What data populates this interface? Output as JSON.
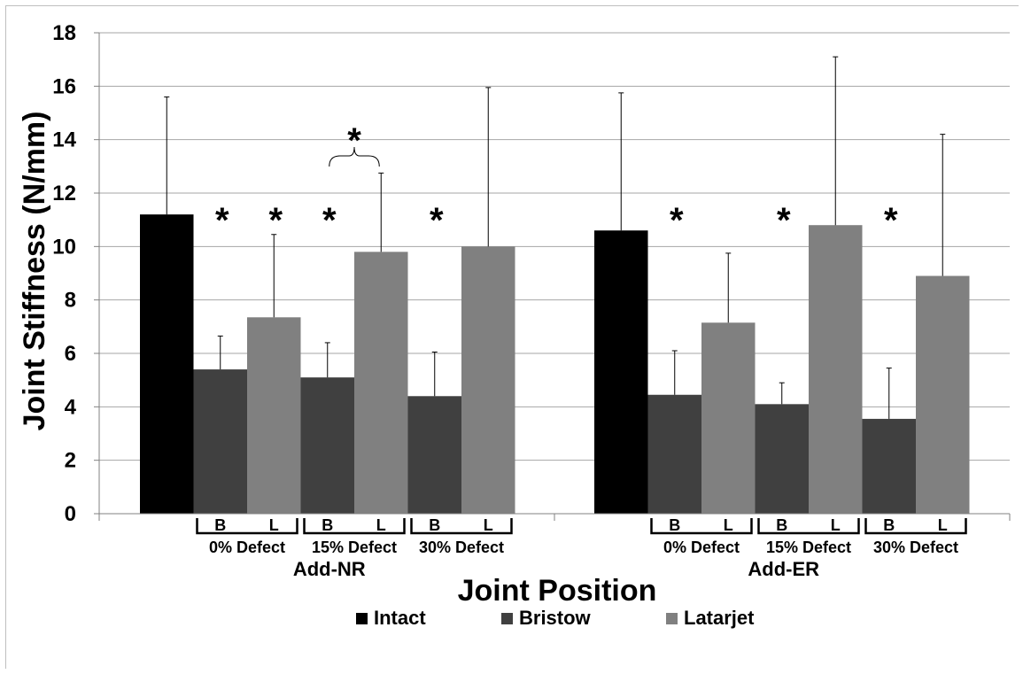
{
  "chart_data": {
    "type": "bar",
    "title": "",
    "ylabel": "Joint Stiffness (N/mm)",
    "xlabel": "Joint Position",
    "ylim": [
      0,
      18
    ],
    "y_ticks": [
      "0",
      "2",
      "4",
      "6",
      "8",
      "10",
      "12",
      "14",
      "16",
      "18"
    ],
    "grid": "horizontal",
    "legend_position": "bottom",
    "series": [
      {
        "name": "Intact",
        "color": "#000000"
      },
      {
        "name": "Bristow",
        "color": "#404040"
      },
      {
        "name": "Latarjet",
        "color": "#808080"
      }
    ],
    "groups": [
      {
        "name": "Add-NR",
        "bars": [
          {
            "series": "Intact",
            "defect": "",
            "value": 11.2,
            "error": 15.6
          },
          {
            "series": "Bristow",
            "defect": "0% Defect",
            "value": 5.4,
            "error": 6.65
          },
          {
            "series": "Latarjet",
            "defect": "0% Defect",
            "value": 7.35,
            "error": 10.45
          },
          {
            "series": "Bristow",
            "defect": "15% Defect",
            "value": 5.1,
            "error": 6.4
          },
          {
            "series": "Latarjet",
            "defect": "15% Defect",
            "value": 9.8,
            "error": 12.75
          },
          {
            "series": "Bristow",
            "defect": "30% Defect",
            "value": 4.4,
            "error": 6.05
          },
          {
            "series": "Latarjet",
            "defect": "30% Defect",
            "value": 10.0,
            "error": 15.95
          }
        ]
      },
      {
        "name": "Add-ER",
        "bars": [
          {
            "series": "Intact",
            "defect": "",
            "value": 10.6,
            "error": 15.75
          },
          {
            "series": "Bristow",
            "defect": "0% Defect",
            "value": 4.45,
            "error": 6.1
          },
          {
            "series": "Latarjet",
            "defect": "0% Defect",
            "value": 7.15,
            "error": 9.75
          },
          {
            "series": "Bristow",
            "defect": "15% Defect",
            "value": 4.1,
            "error": 4.9
          },
          {
            "series": "Latarjet",
            "defect": "15% Defect",
            "value": 10.8,
            "error": 17.1
          },
          {
            "series": "Bristow",
            "defect": "30% Defect",
            "value": 3.55,
            "error": 5.45
          },
          {
            "series": "Latarjet",
            "defect": "30% Defect",
            "value": 8.9,
            "error": 14.2
          }
        ]
      }
    ],
    "sublabels": {
      "bristow": "B",
      "latarjet": "L"
    },
    "annotations": [
      {
        "text": "*",
        "group": 0,
        "bar": 1
      },
      {
        "text": "*",
        "group": 0,
        "bar": 2
      },
      {
        "text": "*",
        "group": 0,
        "bar": 3
      },
      {
        "text": "*",
        "group": 0,
        "bar": 5
      },
      {
        "text": "*",
        "group": 1,
        "bar": 1
      },
      {
        "text": "*",
        "group": 1,
        "bar": 3
      },
      {
        "text": "*",
        "group": 1,
        "bar": 5
      },
      {
        "text": "*",
        "group": 0,
        "bar": 3,
        "bracket_to": 4
      }
    ]
  }
}
